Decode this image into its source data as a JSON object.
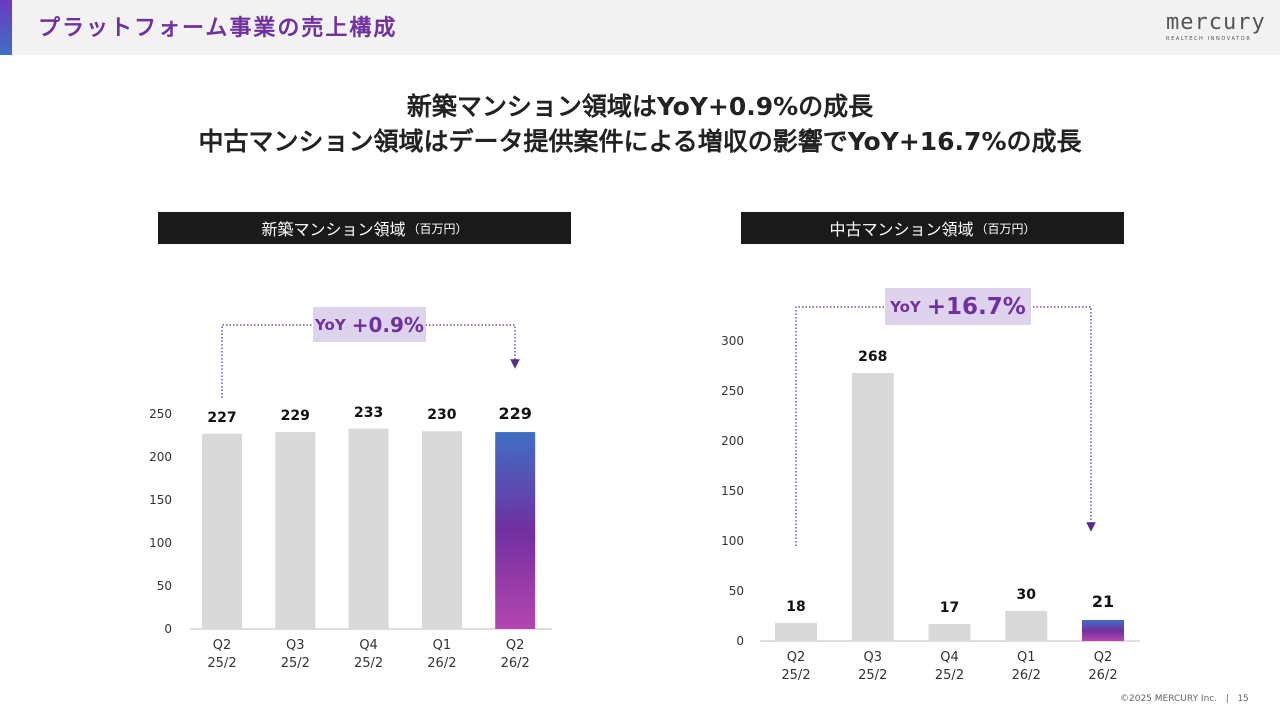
{
  "header": {
    "title": "プラットフォーム事業の売上構成",
    "logo": "mercury",
    "logo_tagline": "REALTECH INNOVATOR"
  },
  "headline": [
    "新築マンション領域はYoY+0.9%の成長",
    "中古マンション領域はデータ提供案件による増収の影響でYoY+16.7%の成長"
  ],
  "chart_data": [
    {
      "type": "bar",
      "title": "新築マンション領域",
      "unit": "（百万円）",
      "categories": [
        "Q2\n25/2",
        "Q3\n25/2",
        "Q4\n25/2",
        "Q1\n26/2",
        "Q2\n26/2"
      ],
      "values": [
        227,
        229,
        233,
        230,
        229
      ],
      "colors": [
        "#d9d9d9",
        "#d9d9d9",
        "#d9d9d9",
        "#d9d9d9",
        "#7030a0"
      ],
      "ylim": [
        0,
        250
      ],
      "yticks": [
        0,
        50,
        100,
        150,
        200,
        250
      ],
      "grid": false,
      "annotation": [
        "YoY",
        "+0.9%"
      ]
    },
    {
      "type": "bar",
      "title": "中古マンション領域",
      "unit": "（百万円）",
      "categories": [
        "Q2\n25/2",
        "Q3\n25/2",
        "Q4\n25/2",
        "Q1\n26/2",
        "Q2\n26/2"
      ],
      "values": [
        18,
        268,
        17,
        30,
        21
      ],
      "colors": [
        "#d9d9d9",
        "#d9d9d9",
        "#d9d9d9",
        "#d9d9d9",
        "#7030a0"
      ],
      "ylim": [
        0,
        300
      ],
      "yticks": [
        0,
        50,
        100,
        150,
        200,
        250,
        300
      ],
      "grid": false,
      "annotation": [
        "YoY",
        "+16.7%"
      ]
    }
  ],
  "footer": {
    "copyright": "©2025 MERCURY Inc.",
    "page": "15"
  }
}
